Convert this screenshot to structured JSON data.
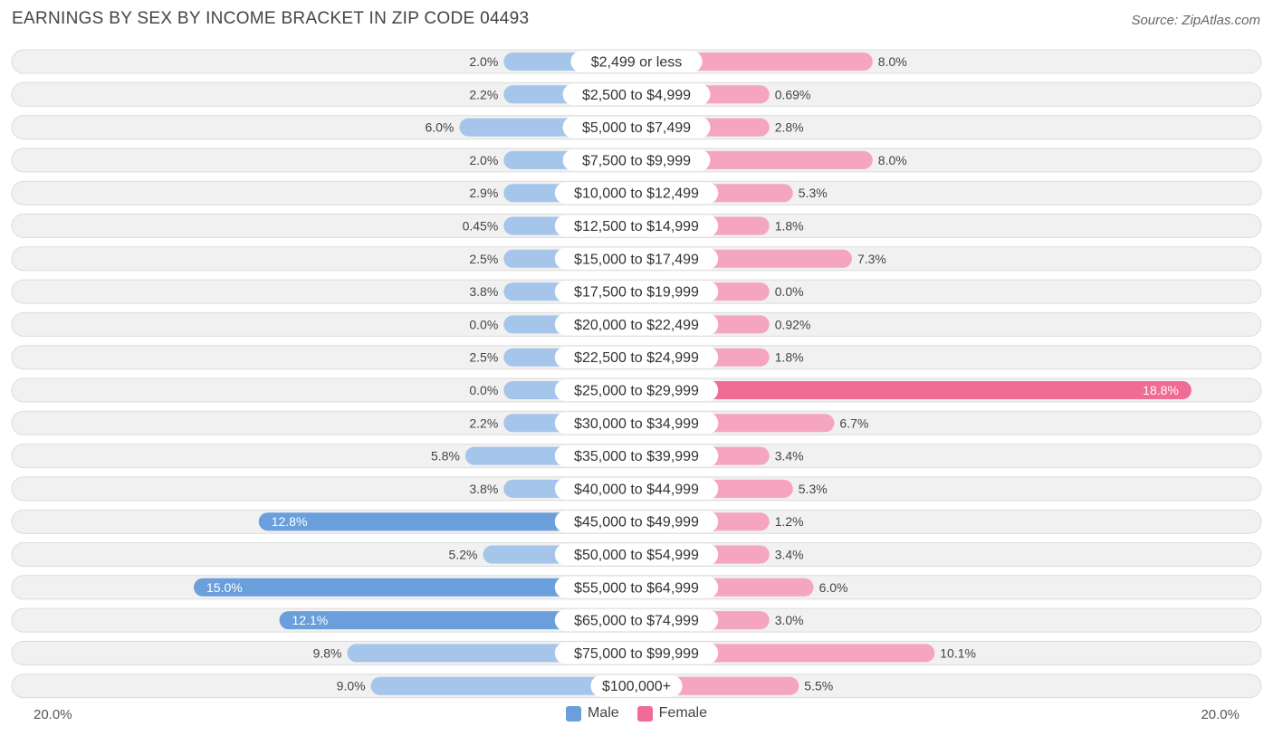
{
  "header": {
    "title": "EARNINGS BY SEX BY INCOME BRACKET IN ZIP CODE 04493",
    "source": "Source: ZipAtlas.com"
  },
  "chart_data": {
    "type": "bar",
    "orientation": "horizontal-diverging",
    "title": "EARNINGS BY SEX BY INCOME BRACKET IN ZIP CODE 04493",
    "categories": [
      "$2,499 or less",
      "$2,500 to $4,999",
      "$5,000 to $7,499",
      "$7,500 to $9,999",
      "$10,000 to $12,499",
      "$12,500 to $14,999",
      "$15,000 to $17,499",
      "$17,500 to $19,999",
      "$20,000 to $22,499",
      "$22,500 to $24,999",
      "$25,000 to $29,999",
      "$30,000 to $34,999",
      "$35,000 to $39,999",
      "$40,000 to $44,999",
      "$45,000 to $49,999",
      "$50,000 to $54,999",
      "$55,000 to $64,999",
      "$65,000 to $74,999",
      "$75,000 to $99,999",
      "$100,000+"
    ],
    "series": [
      {
        "name": "Male",
        "color": "#6a9fdc",
        "values": [
          2.0,
          2.2,
          6.0,
          2.0,
          2.9,
          0.45,
          2.5,
          3.8,
          0.0,
          2.5,
          0.0,
          2.2,
          5.8,
          3.8,
          12.8,
          5.2,
          15.0,
          12.1,
          9.8,
          9.0
        ],
        "labels": [
          "2.0%",
          "2.2%",
          "6.0%",
          "2.0%",
          "2.9%",
          "0.45%",
          "2.5%",
          "3.8%",
          "0.0%",
          "2.5%",
          "0.0%",
          "2.2%",
          "5.8%",
          "3.8%",
          "12.8%",
          "5.2%",
          "15.0%",
          "12.1%",
          "9.8%",
          "9.0%"
        ]
      },
      {
        "name": "Female",
        "color": "#f06b95",
        "values": [
          8.0,
          0.69,
          2.8,
          8.0,
          5.3,
          1.8,
          7.3,
          0.0,
          0.92,
          1.8,
          18.8,
          6.7,
          3.4,
          5.3,
          1.2,
          3.4,
          6.0,
          3.0,
          10.1,
          5.5
        ],
        "labels": [
          "8.0%",
          "0.69%",
          "2.8%",
          "8.0%",
          "5.3%",
          "1.8%",
          "7.3%",
          "0.0%",
          "0.92%",
          "1.8%",
          "18.8%",
          "6.7%",
          "3.4%",
          "5.3%",
          "1.2%",
          "3.4%",
          "6.0%",
          "3.0%",
          "10.1%",
          "5.5%"
        ]
      }
    ],
    "xlim": [
      -20,
      20
    ],
    "axis_labels": {
      "left": "20.0%",
      "right": "20.0%"
    },
    "legend": {
      "position": "bottom-center",
      "items": [
        "Male",
        "Female"
      ]
    }
  }
}
